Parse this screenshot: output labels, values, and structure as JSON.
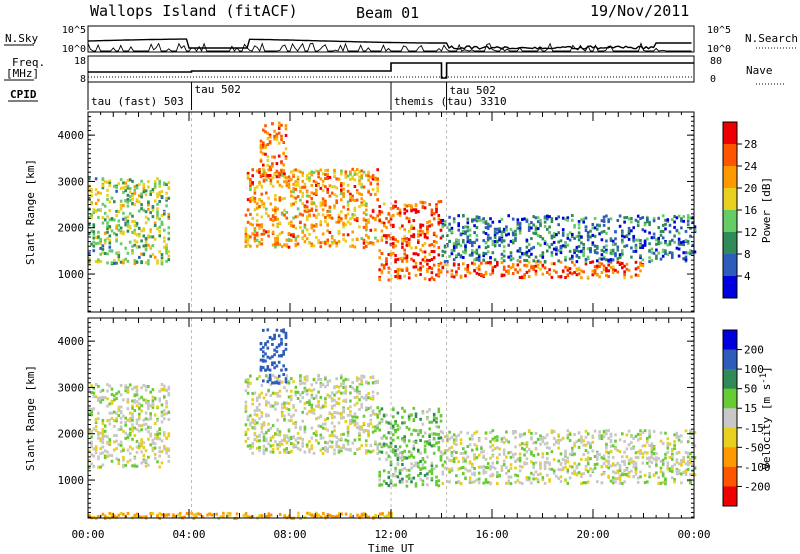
{
  "header": {
    "station": "Wallops Island (fitACF)",
    "beam": "Beam 01",
    "date": "19/Nov/2011"
  },
  "colors": {
    "data_line": "#000000",
    "noise_dotted": "#000000",
    "grid_dash": "#bbbbbb",
    "background": "#ffffff"
  },
  "sky_panel": {
    "left_label": "N.Sky",
    "right_label": "N.Search",
    "left_ticks": [
      "10^5",
      "10^0"
    ],
    "right_ticks": [
      "10^5",
      "10^0"
    ]
  },
  "freq_panel": {
    "left_label_1": "Freq.",
    "left_label_2": "[MHz]",
    "right_label": "Nave",
    "left_ticks": [
      "18",
      "8"
    ],
    "right_ticks": [
      "80",
      "0"
    ],
    "cpid_label": "CPID"
  },
  "cpid_segments": [
    {
      "name": "tau (fast) 503",
      "start_hour": 0.0
    },
    {
      "name": "tau 502",
      "start_hour": 4.1
    },
    {
      "name": "themis (tau) 3310",
      "start_hour": 12.0
    },
    {
      "name": "tau 502",
      "start_hour": 14.2
    }
  ],
  "time_axis": {
    "label": "Time UT",
    "tick_labels": [
      "00:00",
      "04:00",
      "08:00",
      "12:00",
      "16:00",
      "20:00",
      "00:00"
    ],
    "tick_hours": [
      0,
      4,
      8,
      12,
      16,
      20,
      24
    ]
  },
  "chart_data": [
    {
      "type": "heatmap",
      "title": "Power",
      "ylabel": "Slant Range [km]",
      "xlabel": "Time UT",
      "xlim_hours": [
        0,
        24
      ],
      "ylim_km": [
        180,
        4500
      ],
      "y_tick_labels": [
        "1000",
        "2000",
        "3000",
        "4000"
      ],
      "y_tick_values": [
        1000,
        2000,
        3000,
        4000
      ],
      "colorbar": {
        "label": "Power [dB]",
        "tick_labels": [
          "28",
          "24",
          "20",
          "16",
          "12",
          "8",
          "4"
        ],
        "tick_values": [
          28,
          24,
          20,
          16,
          12,
          8,
          4
        ],
        "range": [
          0,
          32
        ],
        "colors": [
          "#0000dd",
          "#2e5cbb",
          "#2e8b57",
          "#66cc66",
          "#e8d020",
          "#ff9900",
          "#ff5500",
          "#ee0000"
        ]
      },
      "ground_scatter": false,
      "echo_regions": [
        {
          "t_start": 0.0,
          "t_end": 3.2,
          "range_start_km": 1250,
          "range_end_km": 3100,
          "power_db": 14
        },
        {
          "t_start": 6.2,
          "t_end": 11.5,
          "range_start_km": 1600,
          "range_end_km": 3300,
          "power_db": 22
        },
        {
          "t_start": 6.8,
          "t_end": 7.8,
          "range_start_km": 3100,
          "range_end_km": 4300,
          "power_db": 24
        },
        {
          "t_start": 11.5,
          "t_end": 14.0,
          "range_start_km": 900,
          "range_end_km": 2600,
          "power_db": 26
        },
        {
          "t_start": 14.0,
          "t_end": 22.0,
          "range_start_km": 950,
          "range_end_km": 1300,
          "power_db": 26
        },
        {
          "t_start": 14.0,
          "t_end": 24.0,
          "range_start_km": 1300,
          "range_end_km": 2300,
          "power_db": 8
        }
      ]
    },
    {
      "type": "heatmap",
      "title": "Velocity",
      "ylabel": "Slant Range [km]",
      "xlabel": "Time UT",
      "xlim_hours": [
        0,
        24
      ],
      "ylim_km": [
        180,
        4500
      ],
      "y_tick_labels": [
        "1000",
        "2000",
        "3000",
        "4000"
      ],
      "y_tick_values": [
        1000,
        2000,
        3000,
        4000
      ],
      "colorbar": {
        "label": "Velocity [m s",
        "label_sup": "-1",
        "label_end": "]",
        "tick_labels": [
          "200",
          "100",
          "50",
          "15",
          "-15",
          "-50",
          "-100",
          "-200"
        ],
        "tick_values": [
          200,
          100,
          50,
          15,
          -15,
          -50,
          -100,
          -200
        ],
        "colors": [
          "#0000dd",
          "#2e5cbb",
          "#2e8b57",
          "#66cc33",
          "#c8c8c8",
          "#e8d020",
          "#ff9900",
          "#ff5500",
          "#ee0000"
        ]
      },
      "ground_scatter": true,
      "echo_regions": [
        {
          "t_start": 0.0,
          "t_end": 3.2,
          "range_start_km": 1300,
          "range_end_km": 3100,
          "velocity": 0
        },
        {
          "t_start": 6.2,
          "t_end": 11.5,
          "range_start_km": 1600,
          "range_end_km": 3300,
          "velocity": 0
        },
        {
          "t_start": 6.8,
          "t_end": 7.8,
          "range_start_km": 3100,
          "range_end_km": 4300,
          "velocity": 150
        },
        {
          "t_start": 11.5,
          "t_end": 14.0,
          "range_start_km": 900,
          "range_end_km": 2600,
          "velocity": 30
        },
        {
          "t_start": 14.0,
          "t_end": 24.0,
          "range_start_km": 950,
          "range_end_km": 2100,
          "velocity": 0
        },
        {
          "t_start": 0.0,
          "t_end": 12.0,
          "range_start_km": 200,
          "range_end_km": 320,
          "velocity": -60
        }
      ]
    }
  ]
}
